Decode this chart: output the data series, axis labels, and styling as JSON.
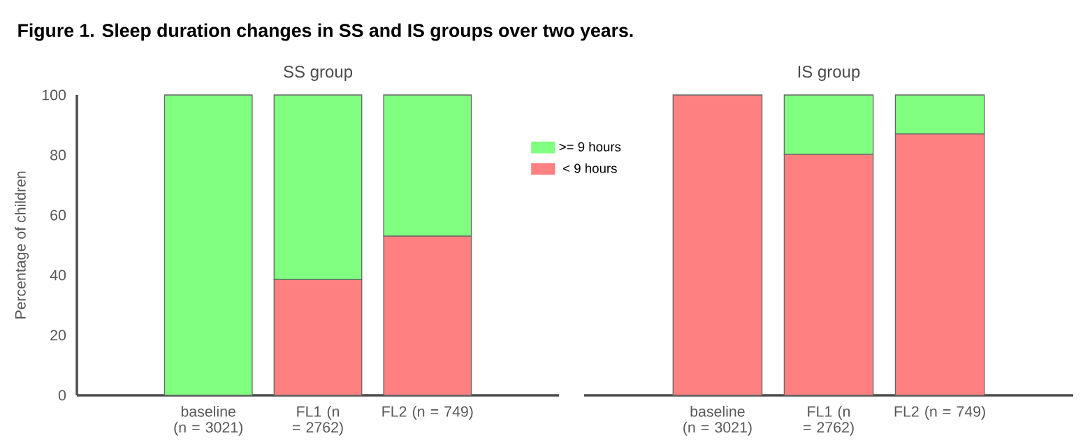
{
  "chart_data": [
    {
      "type": "bar",
      "title": "SS group",
      "ylabel": "Percentage of children",
      "annotations": [
        "Figure 1. Sleep duration changes in SS and IS groups over two years."
      ],
      "categories": [
        "baseline (n = 3021)",
        "FL1 (n = 2762)",
        "FL2 (n = 749)"
      ],
      "stacked": true,
      "ylim": [
        0,
        100
      ],
      "yticks": [
        0,
        20,
        40,
        60,
        80,
        100
      ],
      "legend": "right",
      "series": [
        {
          "name": "< 9 hours",
          "color": "#ff8080",
          "values": [
            0,
            38.5,
            53
          ]
        },
        {
          "name": ">= 9 hours",
          "color": "#80ff80",
          "values": [
            100,
            61.5,
            47
          ]
        }
      ]
    },
    {
      "type": "bar",
      "title": "IS group",
      "categories": [
        "baseline (n = 3021)",
        "FL1 (n = 2762)",
        "FL2 (n = 749)"
      ],
      "stacked": true,
      "ylim": [
        0,
        100
      ],
      "yticks": [
        0,
        20,
        40,
        60,
        80,
        100
      ],
      "tick_labels": "x",
      "series": [
        {
          "color": "#ff8080",
          "values": [
            100,
            80.2,
            87
          ]
        },
        {
          "color": "#80ff80",
          "values": [
            0,
            19.8,
            13
          ]
        }
      ]
    }
  ]
}
